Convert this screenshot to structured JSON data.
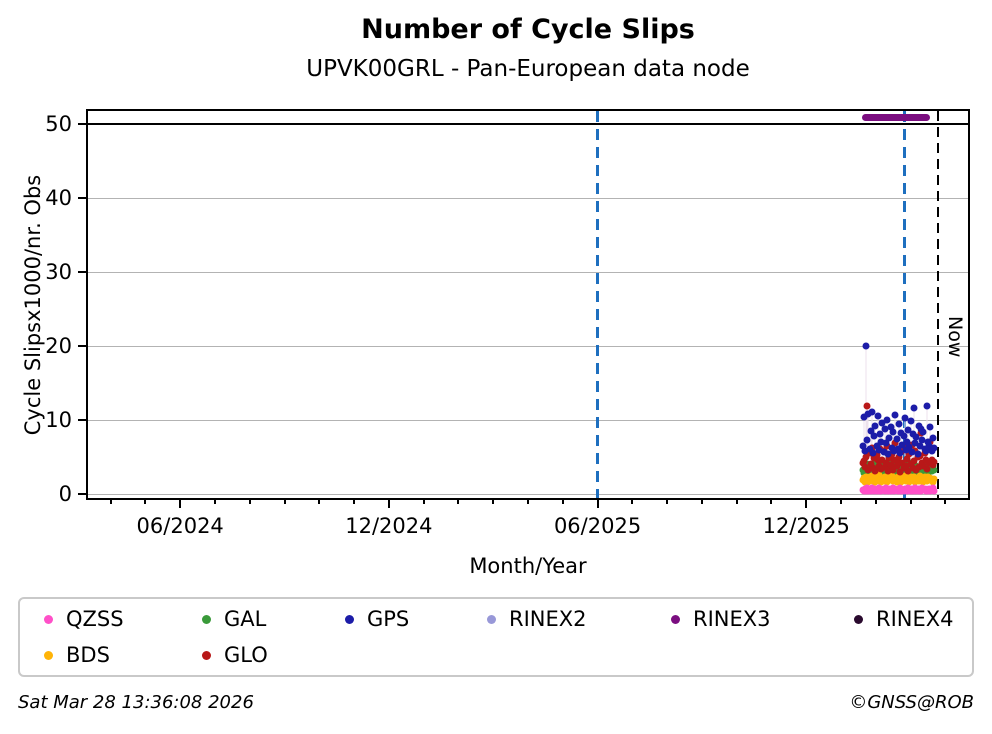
{
  "footer": {
    "timestamp": "Sat Mar 28 13:36:08 2026",
    "credit": "©GNSS@ROB"
  },
  "legend": {
    "items": [
      {
        "label": "QZSS",
        "color": "#FF50C8"
      },
      {
        "label": "GAL",
        "color": "#3A9A3A"
      },
      {
        "label": "GPS",
        "color": "#1C1CA8"
      },
      {
        "label": "RINEX2",
        "color": "#9898D8"
      },
      {
        "label": "RINEX3",
        "color": "#7B0E80"
      },
      {
        "label": "RINEX4",
        "color": "#2A0A2E"
      },
      {
        "label": "BDS",
        "color": "#FFB408"
      },
      {
        "label": "GLO",
        "color": "#B81818"
      }
    ]
  },
  "chart_data": {
    "type": "scatter",
    "title": "Number of Cycle Slips",
    "subtitle": "UPVK00GRL - Pan-European data node",
    "xlabel": "Month/Year",
    "ylabel": "Cycle Slipsx1000/nr. Obs",
    "x_axis": {
      "unit": "months, 0 = 06/2024",
      "lim": [
        -2.65,
        22.65
      ],
      "major_ticks": [
        {
          "pos": 0,
          "label": "06/2024"
        },
        {
          "pos": 6,
          "label": "12/2024"
        },
        {
          "pos": 12,
          "label": "06/2025"
        },
        {
          "pos": 18,
          "label": "12/2025"
        }
      ],
      "minor_tick_every": 1
    },
    "y_axis": {
      "lim": [
        -0.6,
        51.8
      ],
      "ticks": [
        0,
        10,
        20,
        30,
        40,
        50
      ],
      "gridlines": [
        0,
        10,
        20,
        30,
        40
      ],
      "grid_color": "#b3b3b3"
    },
    "threshold_line": {
      "y": 50,
      "color": "#000000"
    },
    "vlines": [
      {
        "x": 12.0,
        "color": "#1E6FBF",
        "width": 3,
        "dash": 11,
        "gap": 7
      },
      {
        "x": 20.82,
        "color": "#1E6FBF",
        "width": 3,
        "dash": 11,
        "gap": 7
      },
      {
        "x": 21.79,
        "color": "#000000",
        "width": 2,
        "dash": 10,
        "gap": 6,
        "label": "Now"
      }
    ],
    "rinex3_bar": {
      "y": 50.9,
      "x_start": 19.6,
      "x_end": 21.56,
      "color": "#7B0E80"
    },
    "stem_color": "#ece2ec",
    "stem_threshold": 8,
    "series": [
      {
        "name": "GAL",
        "color": "#3A9A3A",
        "x_start": 19.62,
        "x_step": 0.0336,
        "values": [
          3.2,
          2.8,
          3.6,
          3.0,
          4.0,
          2.7,
          3.4,
          3.1,
          3.8,
          2.9,
          3.3,
          4.2,
          2.8,
          3.5,
          3.0,
          3.7,
          2.6,
          3.2,
          3.9,
          2.8,
          3.4,
          3.0,
          4.1,
          2.9,
          3.3,
          3.6,
          2.7,
          3.8,
          3.1,
          2.9,
          3.5,
          4.0,
          2.8,
          3.3,
          3.7,
          3.0,
          2.7,
          3.9,
          3.2,
          2.8,
          3.6,
          3.1,
          4.2,
          2.9,
          3.4,
          3.0,
          3.8,
          2.7,
          3.3,
          3.6,
          2.9,
          4.0,
          3.1,
          2.8,
          3.5,
          3.2,
          3.7,
          2.9,
          3.4,
          3.0,
          3.8,
          3.2
        ]
      },
      {
        "name": "BDS",
        "color": "#FFB408",
        "x_start": 19.62,
        "x_step": 0.0336,
        "values": [
          1.8,
          2.1,
          1.6,
          2.3,
          1.9,
          1.5,
          2.2,
          1.8,
          2.4,
          1.7,
          2.0,
          1.6,
          2.2,
          1.9,
          2.5,
          1.8,
          1.5,
          2.1,
          1.7,
          2.3,
          1.9,
          1.6,
          2.2,
          1.8,
          2.0,
          2.4,
          1.7,
          1.9,
          2.1,
          1.6,
          2.3,
          1.8,
          2.0,
          1.5,
          2.2,
          1.9,
          2.4,
          1.7,
          2.1,
          1.8,
          1.6,
          2.2,
          2.0,
          1.8,
          2.3,
          1.6,
          1.9,
          2.1,
          1.7,
          2.4,
          1.8,
          2.0,
          1.6,
          2.2,
          1.9,
          1.7,
          2.3,
          1.8,
          2.1,
          1.9,
          1.6,
          2.0
        ]
      },
      {
        "name": "QZSS",
        "color": "#FF50C8",
        "x_start": 19.62,
        "x_step": 0.0336,
        "values": [
          0.5,
          0.3,
          0.6,
          0.4,
          0.7,
          0.3,
          0.5,
          0.4,
          0.8,
          0.5,
          0.3,
          0.6,
          0.4,
          0.5,
          0.7,
          0.4,
          0.3,
          0.5,
          0.6,
          0.4,
          0.8,
          0.5,
          0.4,
          0.6,
          0.3,
          0.5,
          0.7,
          0.4,
          0.6,
          0.5,
          0.3,
          0.6,
          0.8,
          0.4,
          0.5,
          0.3,
          0.6,
          0.5,
          0.4,
          0.7,
          0.5,
          0.3,
          0.6,
          0.4,
          0.5,
          0.8,
          0.4,
          0.6,
          0.3,
          0.5,
          0.4,
          0.7,
          0.5,
          0.6,
          0.4,
          0.3,
          0.5,
          0.6,
          0.4,
          0.5,
          0.7,
          0.4
        ]
      },
      {
        "name": "GLO",
        "color": "#B81818",
        "x_start": 19.62,
        "x_step": 0.0336,
        "values": [
          4.2,
          4.4,
          3.6,
          5.0,
          11.8,
          3.2,
          5.5,
          4.0,
          6.2,
          3.5,
          4.8,
          3.0,
          5.2,
          4.5,
          3.8,
          6.0,
          3.3,
          4.6,
          5.8,
          3.6,
          4.2,
          6.5,
          3.0,
          4.8,
          3.9,
          5.4,
          3.2,
          4.5,
          6.8,
          3.7,
          4.3,
          5.0,
          2.9,
          5.6,
          4.1,
          3.4,
          6.2,
          3.8,
          4.7,
          3.1,
          5.3,
          4.0,
          6.6,
          3.5,
          4.4,
          5.8,
          3.2,
          4.9,
          3.6,
          5.1,
          8.2,
          4.2,
          3.8,
          5.5,
          4.6,
          3.3,
          6.0,
          4.1,
          7.0,
          4.5,
          3.9,
          4.3
        ]
      },
      {
        "name": "GPS",
        "color": "#1C1CA8",
        "x_start": 19.62,
        "x_step": 0.0336,
        "values": [
          6.5,
          10.4,
          5.8,
          20.0,
          7.2,
          10.8,
          6.0,
          8.5,
          11.0,
          5.5,
          7.8,
          9.2,
          6.4,
          10.5,
          5.9,
          8.0,
          7.0,
          9.6,
          5.6,
          8.8,
          6.8,
          10.0,
          5.4,
          7.5,
          9.0,
          6.2,
          8.4,
          5.8,
          10.6,
          7.4,
          6.0,
          9.4,
          5.5,
          8.2,
          6.6,
          7.8,
          10.2,
          5.9,
          7.0,
          8.6,
          6.3,
          9.8,
          5.6,
          8.0,
          11.6,
          6.8,
          7.6,
          5.4,
          9.2,
          6.5,
          8.8,
          7.2,
          8.4,
          6.0,
          5.7,
          11.9,
          7.0,
          6.4,
          9.0,
          5.8,
          7.5,
          6.2
        ]
      }
    ]
  }
}
